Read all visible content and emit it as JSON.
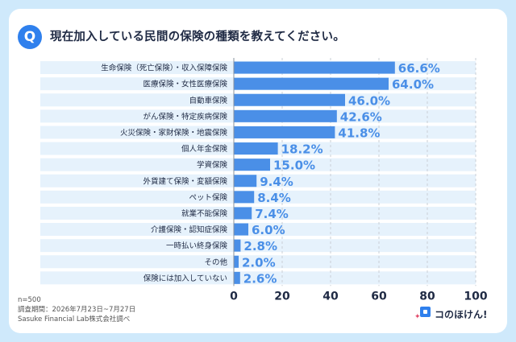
{
  "header": {
    "badge": "Q",
    "title": "現在加入している民間の保険の種類を教えてください。"
  },
  "chart_data": {
    "type": "bar",
    "orientation": "horizontal",
    "categories": [
      "生命保険（死亡保険）・収入保障保険",
      "医療保険・女性医療保険",
      "自動車保険",
      "がん保険・特定疾病保険",
      "火災保険・家財保険・地震保険",
      "個人年金保険",
      "学資保険",
      "外貨建て保険・変額保険",
      "ペット保険",
      "就業不能保険",
      "介護保険・認知症保険",
      "一時払い終身保険",
      "その他",
      "保険には加入していない"
    ],
    "values": [
      66.6,
      64.0,
      46.0,
      42.6,
      41.8,
      18.2,
      15.0,
      9.4,
      8.4,
      7.4,
      6.0,
      2.8,
      2.0,
      2.6
    ],
    "value_labels": [
      "66.6%",
      "64.0%",
      "46.0%",
      "42.6%",
      "41.8%",
      "18.2%",
      "15.0%",
      "9.4%",
      "8.4%",
      "7.4%",
      "6.0%",
      "2.8%",
      "2.0%",
      "2.6%"
    ],
    "xlim": [
      0,
      100
    ],
    "xticks": [
      "0",
      "20",
      "40",
      "60",
      "80",
      "100"
    ],
    "grid": true,
    "bar_color": "#4a8fe7",
    "label_color": "#4a8fe7",
    "row_band_color": "#e6f2fc"
  },
  "footer": {
    "notes": [
      "n=500",
      "調査期間：2026年7月23日~7月27日",
      "Sasuke Financial Lab株式会社調べ"
    ],
    "logo_text": "コのほけん!"
  }
}
